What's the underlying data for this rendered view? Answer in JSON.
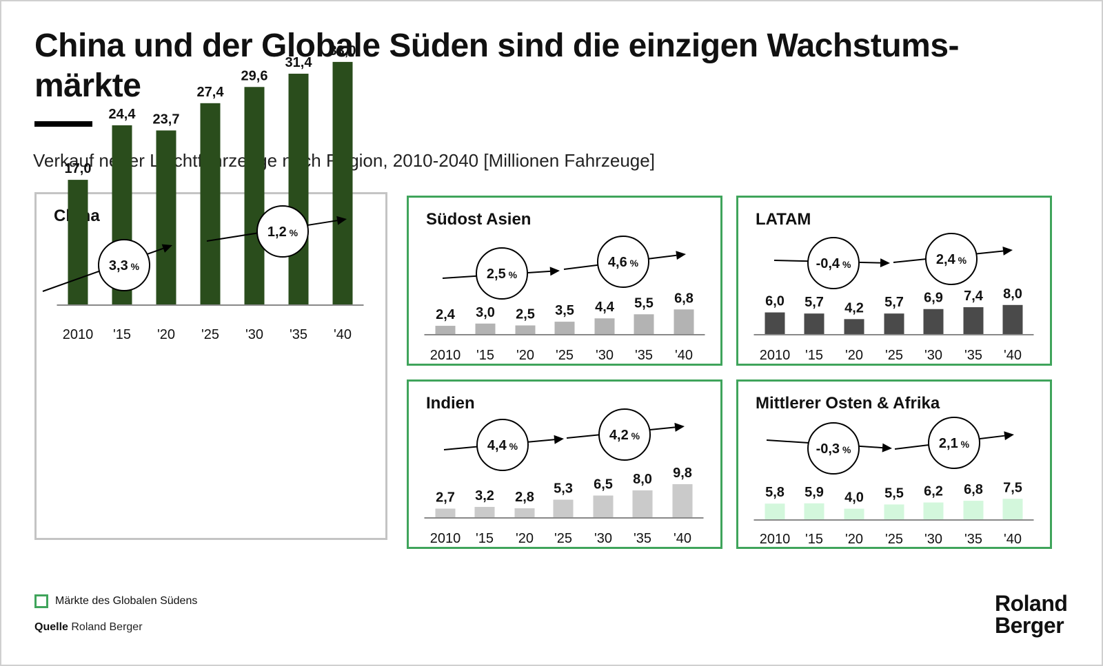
{
  "header": {
    "title": "China und der Globale Süden sind die einzigen Wachstums-märkte",
    "subtitle": "Verkauf neuer Leichtfahrzeuge nach Region, 2010-2040 [Millionen Fahrzeuge]"
  },
  "legend": {
    "label": "Märkte des Globalen Südens",
    "color": "#3fa45b"
  },
  "source": {
    "label": "Quelle",
    "value": "Roland Berger"
  },
  "logo": {
    "line1": "Roland",
    "line2": "Berger"
  },
  "chart_data": [
    {
      "type": "bar",
      "title": "China",
      "categories": [
        "2010",
        "'15",
        "'20",
        "'25",
        "'30",
        "'35",
        "'40"
      ],
      "values": [
        17.0,
        24.4,
        23.7,
        27.4,
        29.6,
        31.4,
        33.0
      ],
      "value_labels": [
        "17,0",
        "24,4",
        "23,7",
        "27,4",
        "29,6",
        "31,4",
        "33,0"
      ],
      "growth_rates": [
        "3,3",
        "1,2"
      ],
      "growth_unit": "%",
      "bar_color": "#2a4d1c",
      "global_south": false
    },
    {
      "type": "bar",
      "title": "Südost Asien",
      "categories": [
        "2010",
        "'15",
        "'20",
        "'25",
        "'30",
        "'35",
        "'40"
      ],
      "values": [
        2.4,
        3.0,
        2.5,
        3.5,
        4.4,
        5.5,
        6.8
      ],
      "value_labels": [
        "2,4",
        "3,0",
        "2,5",
        "3,5",
        "4,4",
        "5,5",
        "6,8"
      ],
      "growth_rates": [
        "2,5",
        "4,6"
      ],
      "growth_unit": "%",
      "bar_color": "#b3b3b3",
      "global_south": true
    },
    {
      "type": "bar",
      "title": "LATAM",
      "categories": [
        "2010",
        "'15",
        "'20",
        "'25",
        "'30",
        "'35",
        "'40"
      ],
      "values": [
        6.0,
        5.7,
        4.2,
        5.7,
        6.9,
        7.4,
        8.0
      ],
      "value_labels": [
        "6,0",
        "5,7",
        "4,2",
        "5,7",
        "6,9",
        "7,4",
        "8,0"
      ],
      "growth_rates": [
        "-0,4",
        "2,4"
      ],
      "growth_unit": "%",
      "bar_color": "#4a4a4a",
      "global_south": true
    },
    {
      "type": "bar",
      "title": "Indien",
      "categories": [
        "2010",
        "'15",
        "'20",
        "'25",
        "'30",
        "'35",
        "'40"
      ],
      "values": [
        2.7,
        3.2,
        2.8,
        5.3,
        6.5,
        8.0,
        9.8
      ],
      "value_labels": [
        "2,7",
        "3,2",
        "2,8",
        "5,3",
        "6,5",
        "8,0",
        "9,8"
      ],
      "growth_rates": [
        "4,4",
        "4,2"
      ],
      "growth_unit": "%",
      "bar_color": "#cacaca",
      "global_south": true
    },
    {
      "type": "bar",
      "title": "Mittlerer Osten & Afrika",
      "categories": [
        "2010",
        "'15",
        "'20",
        "'25",
        "'30",
        "'35",
        "'40"
      ],
      "values": [
        5.8,
        5.9,
        4.0,
        5.5,
        6.2,
        6.8,
        7.5
      ],
      "value_labels": [
        "5,8",
        "5,9",
        "4,0",
        "5,5",
        "6,2",
        "6,8",
        "7,5"
      ],
      "growth_rates": [
        "-0,3",
        "2,1"
      ],
      "growth_unit": "%",
      "bar_color": "#d3f7dc",
      "global_south": true
    }
  ]
}
